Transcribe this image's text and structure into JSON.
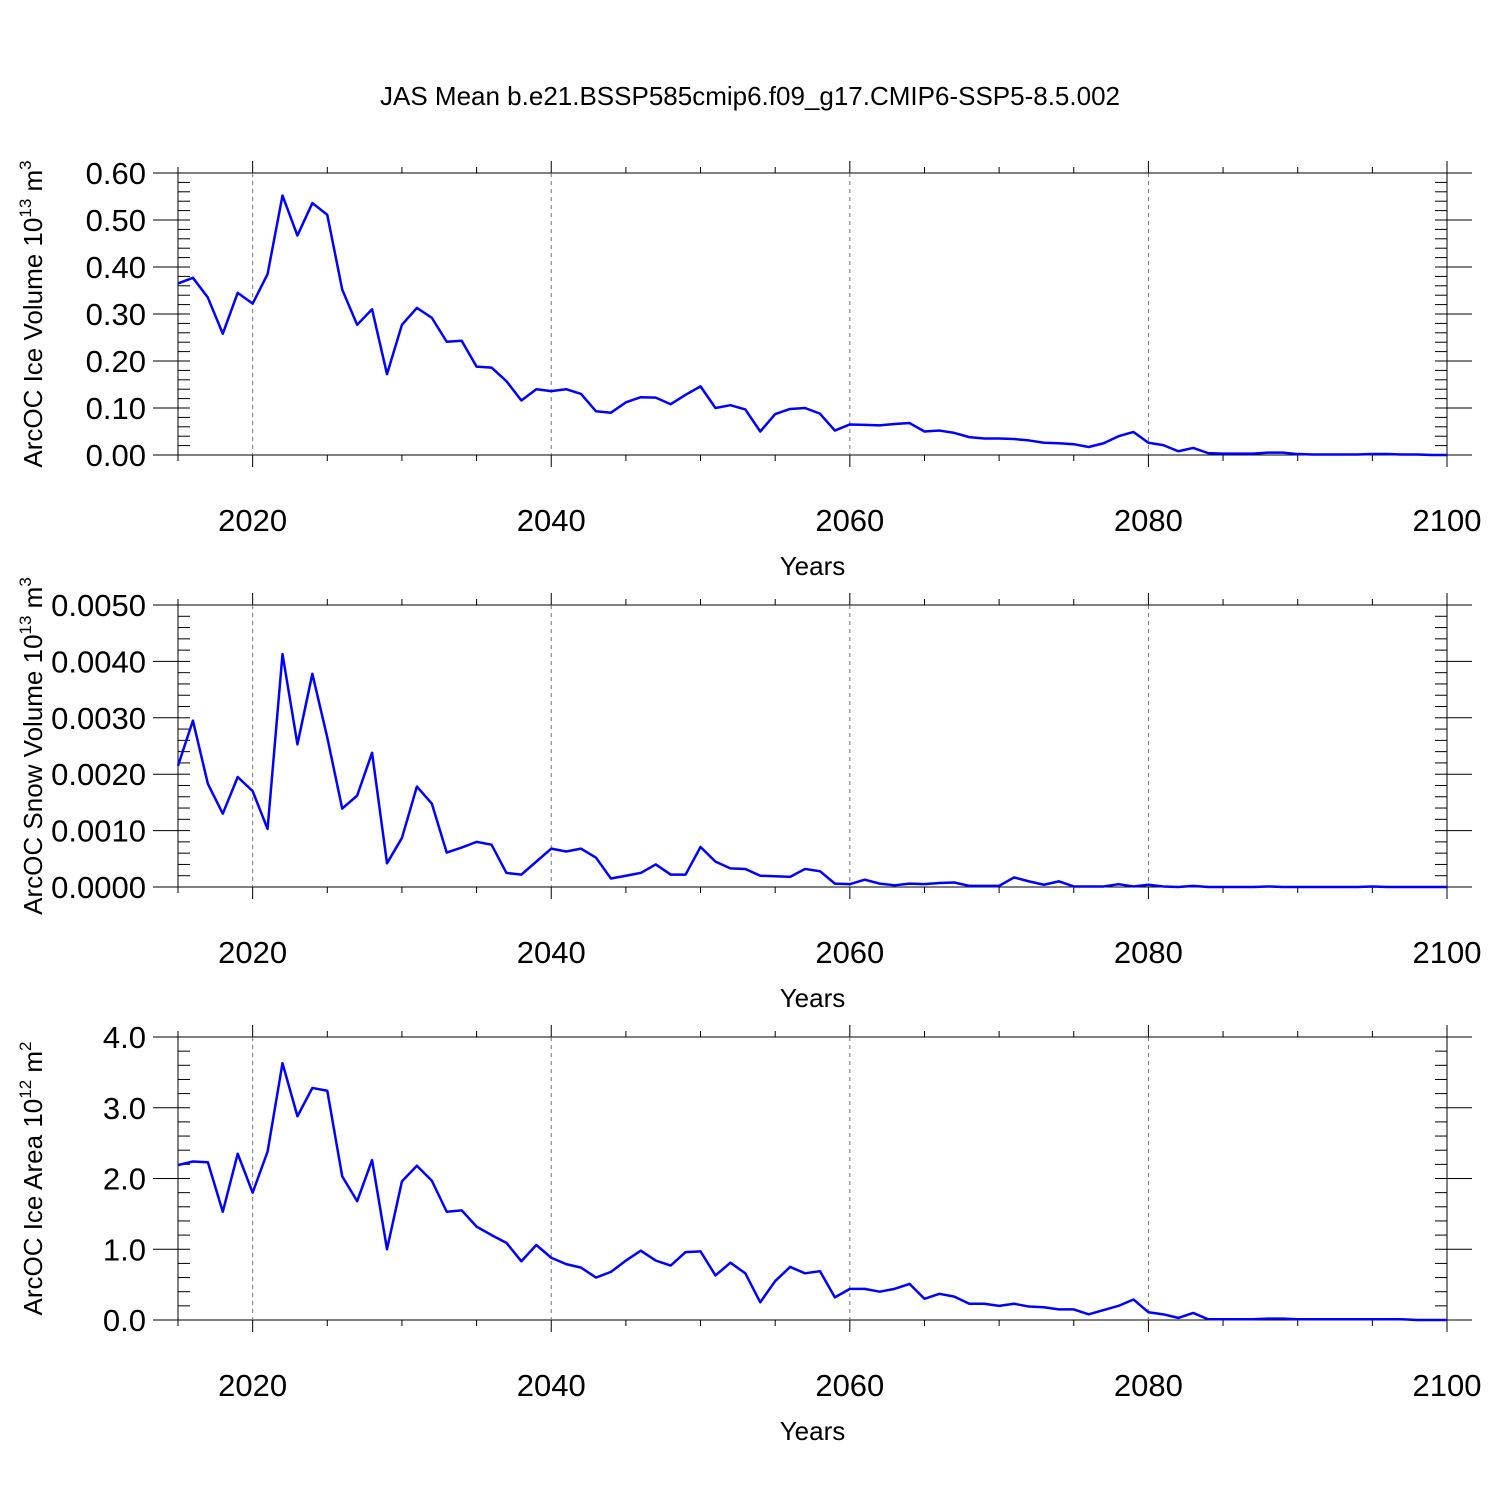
{
  "figure": {
    "title": "JAS Mean b.e21.BSSP585cmip6.f09_g17.CMIP6-SSP5-8.5.002",
    "line_color": "#0000ff",
    "grid_color": "#777777"
  },
  "chart_data": [
    {
      "type": "line",
      "xlabel": "Years",
      "ylabel_main": "ArcOC Ice Volume 10",
      "ylabel_sup": "13",
      "ylabel_unit": " m",
      "ylabel_unit_sup": "3",
      "xlim": [
        2015,
        2100
      ],
      "ylim": [
        0,
        0.6
      ],
      "y_ticks": [
        0.0,
        0.1,
        0.2,
        0.3,
        0.4,
        0.5,
        0.6
      ],
      "y_tick_labels": [
        "0.00",
        "0.10",
        "0.20",
        "0.30",
        "0.40",
        "0.50",
        "0.60"
      ],
      "x_ticks": [
        2020,
        2040,
        2060,
        2080,
        2100
      ],
      "x_tick_labels": [
        "2020",
        "2040",
        "2060",
        "2080",
        "2100"
      ],
      "grid": "x-dashed",
      "x": [
        2015,
        2016,
        2017,
        2018,
        2019,
        2020,
        2021,
        2022,
        2023,
        2024,
        2025,
        2026,
        2027,
        2028,
        2029,
        2030,
        2031,
        2032,
        2033,
        2034,
        2035,
        2036,
        2037,
        2038,
        2039,
        2040,
        2041,
        2042,
        2043,
        2044,
        2045,
        2046,
        2047,
        2048,
        2049,
        2050,
        2051,
        2052,
        2053,
        2054,
        2055,
        2056,
        2057,
        2058,
        2059,
        2060,
        2061,
        2062,
        2063,
        2064,
        2065,
        2066,
        2067,
        2068,
        2069,
        2070,
        2071,
        2072,
        2073,
        2074,
        2075,
        2076,
        2077,
        2078,
        2079,
        2080,
        2081,
        2082,
        2083,
        2084,
        2085,
        2086,
        2087,
        2088,
        2089,
        2090,
        2091,
        2092,
        2093,
        2094,
        2095,
        2096,
        2097,
        2098,
        2099,
        2100
      ],
      "series": [
        {
          "values": [
            0.365,
            0.377,
            0.335,
            0.258,
            0.345,
            0.322,
            0.385,
            0.552,
            0.467,
            0.536,
            0.511,
            0.352,
            0.277,
            0.31,
            0.172,
            0.277,
            0.313,
            0.292,
            0.241,
            0.243,
            0.188,
            0.186,
            0.157,
            0.116,
            0.14,
            0.136,
            0.14,
            0.13,
            0.093,
            0.09,
            0.112,
            0.123,
            0.122,
            0.108,
            0.128,
            0.146,
            0.1,
            0.106,
            0.097,
            0.05,
            0.087,
            0.098,
            0.1,
            0.088,
            0.052,
            0.065,
            0.064,
            0.063,
            0.066,
            0.068,
            0.05,
            0.052,
            0.047,
            0.038,
            0.035,
            0.035,
            0.034,
            0.031,
            0.026,
            0.025,
            0.023,
            0.017,
            0.025,
            0.04,
            0.049,
            0.026,
            0.021,
            0.008,
            0.015,
            0.004,
            0.003,
            0.003,
            0.003,
            0.005,
            0.005,
            0.002,
            0.001,
            0.001,
            0.001,
            0.001,
            0.002,
            0.002,
            0.001,
            0.001,
            0.0,
            0.0
          ]
        }
      ]
    },
    {
      "type": "line",
      "xlabel": "Years",
      "ylabel_main": "ArcOC Snow Volume 10",
      "ylabel_sup": "13",
      "ylabel_unit": " m",
      "ylabel_unit_sup": "3",
      "xlim": [
        2015,
        2100
      ],
      "ylim": [
        0,
        0.005
      ],
      "y_ticks": [
        0.0,
        0.001,
        0.002,
        0.003,
        0.004,
        0.005
      ],
      "y_tick_labels": [
        "0.0000",
        "0.0010",
        "0.0020",
        "0.0030",
        "0.0040",
        "0.0050"
      ],
      "x_ticks": [
        2020,
        2040,
        2060,
        2080,
        2100
      ],
      "x_tick_labels": [
        "2020",
        "2040",
        "2060",
        "2080",
        "2100"
      ],
      "grid": "x-dashed",
      "x": [
        2015,
        2016,
        2017,
        2018,
        2019,
        2020,
        2021,
        2022,
        2023,
        2024,
        2025,
        2026,
        2027,
        2028,
        2029,
        2030,
        2031,
        2032,
        2033,
        2034,
        2035,
        2036,
        2037,
        2038,
        2039,
        2040,
        2041,
        2042,
        2043,
        2044,
        2045,
        2046,
        2047,
        2048,
        2049,
        2050,
        2051,
        2052,
        2053,
        2054,
        2055,
        2056,
        2057,
        2058,
        2059,
        2060,
        2061,
        2062,
        2063,
        2064,
        2065,
        2066,
        2067,
        2068,
        2069,
        2070,
        2071,
        2072,
        2073,
        2074,
        2075,
        2076,
        2077,
        2078,
        2079,
        2080,
        2081,
        2082,
        2083,
        2084,
        2085,
        2086,
        2087,
        2088,
        2089,
        2090,
        2091,
        2092,
        2093,
        2094,
        2095,
        2096,
        2097,
        2098,
        2099,
        2100
      ],
      "series": [
        {
          "values": [
            0.00215,
            0.00295,
            0.00183,
            0.0013,
            0.00195,
            0.0017,
            0.00103,
            0.00413,
            0.00253,
            0.00378,
            0.00265,
            0.00139,
            0.00162,
            0.00238,
            0.00042,
            0.00087,
            0.00178,
            0.00148,
            0.00061,
            0.0007,
            0.0008,
            0.00075,
            0.00025,
            0.00022,
            0.00045,
            0.00068,
            0.00063,
            0.00068,
            0.00052,
            0.00015,
            0.0002,
            0.00025,
            0.0004,
            0.00022,
            0.00022,
            0.00071,
            0.00045,
            0.00033,
            0.00032,
            0.0002,
            0.00019,
            0.00018,
            0.00032,
            0.00028,
            6e-05,
            5e-05,
            0.00013,
            6e-05,
            3e-05,
            6e-05,
            5e-05,
            7e-05,
            8e-05,
            2e-05,
            2e-05,
            2e-05,
            0.00017,
            0.0001,
            4e-05,
            0.0001,
            1e-05,
            1e-05,
            1e-05,
            5e-05,
            1e-05,
            4e-05,
            1e-05,
            0.0,
            2e-05,
            0.0,
            0.0,
            0.0,
            0.0,
            1e-05,
            0.0,
            0.0,
            0.0,
            0.0,
            0.0,
            0.0,
            1e-05,
            0.0,
            0.0,
            0.0,
            0.0,
            0.0
          ]
        }
      ]
    },
    {
      "type": "line",
      "xlabel": "Years",
      "ylabel_main": "ArcOC Ice Area 10",
      "ylabel_sup": "12",
      "ylabel_unit": " m",
      "ylabel_unit_sup": "2",
      "xlim": [
        2015,
        2100
      ],
      "ylim": [
        0,
        4.0
      ],
      "y_ticks": [
        0.0,
        1.0,
        2.0,
        3.0,
        4.0
      ],
      "y_tick_labels": [
        "0.0",
        "1.0",
        "2.0",
        "3.0",
        "4.0"
      ],
      "x_ticks": [
        2020,
        2040,
        2060,
        2080,
        2100
      ],
      "x_tick_labels": [
        "2020",
        "2040",
        "2060",
        "2080",
        "2100"
      ],
      "grid": "x-dashed",
      "x": [
        2015,
        2016,
        2017,
        2018,
        2019,
        2020,
        2021,
        2022,
        2023,
        2024,
        2025,
        2026,
        2027,
        2028,
        2029,
        2030,
        2031,
        2032,
        2033,
        2034,
        2035,
        2036,
        2037,
        2038,
        2039,
        2040,
        2041,
        2042,
        2043,
        2044,
        2045,
        2046,
        2047,
        2048,
        2049,
        2050,
        2051,
        2052,
        2053,
        2054,
        2055,
        2056,
        2057,
        2058,
        2059,
        2060,
        2061,
        2062,
        2063,
        2064,
        2065,
        2066,
        2067,
        2068,
        2069,
        2070,
        2071,
        2072,
        2073,
        2074,
        2075,
        2076,
        2077,
        2078,
        2079,
        2080,
        2081,
        2082,
        2083,
        2084,
        2085,
        2086,
        2087,
        2088,
        2089,
        2090,
        2091,
        2092,
        2093,
        2094,
        2095,
        2096,
        2097,
        2098,
        2099,
        2100
      ],
      "series": [
        {
          "values": [
            2.19,
            2.24,
            2.23,
            1.53,
            2.35,
            1.8,
            2.38,
            3.63,
            2.88,
            3.28,
            3.24,
            2.03,
            1.68,
            2.26,
            1.0,
            1.96,
            2.18,
            1.97,
            1.53,
            1.55,
            1.32,
            1.2,
            1.09,
            0.83,
            1.06,
            0.88,
            0.79,
            0.74,
            0.6,
            0.68,
            0.84,
            0.98,
            0.84,
            0.77,
            0.96,
            0.97,
            0.63,
            0.81,
            0.66,
            0.25,
            0.55,
            0.75,
            0.66,
            0.69,
            0.32,
            0.44,
            0.44,
            0.4,
            0.44,
            0.51,
            0.3,
            0.37,
            0.33,
            0.23,
            0.23,
            0.2,
            0.23,
            0.19,
            0.18,
            0.15,
            0.15,
            0.08,
            0.14,
            0.2,
            0.29,
            0.11,
            0.08,
            0.03,
            0.1,
            0.01,
            0.01,
            0.01,
            0.01,
            0.02,
            0.02,
            0.01,
            0.01,
            0.01,
            0.01,
            0.01,
            0.01,
            0.01,
            0.01,
            0.0,
            0.0,
            0.0
          ]
        }
      ]
    }
  ]
}
